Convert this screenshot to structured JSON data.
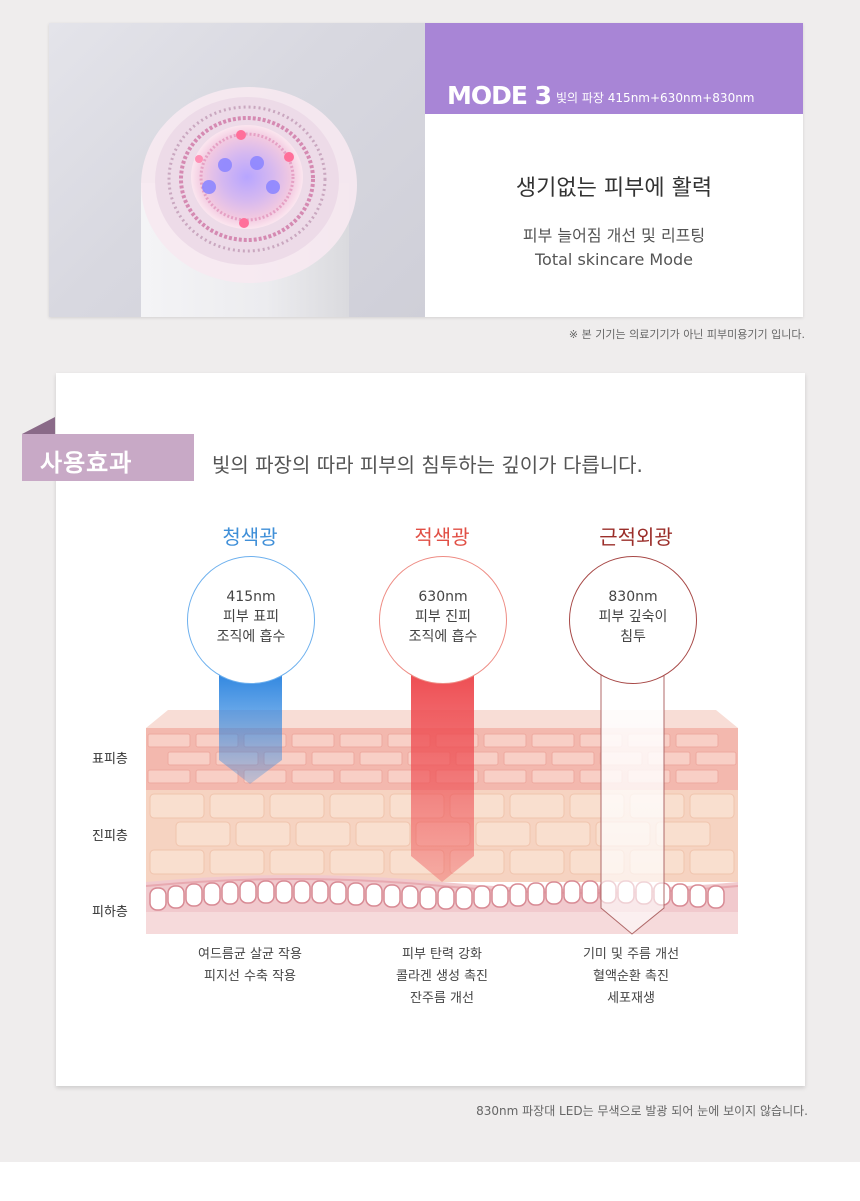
{
  "mode": {
    "title": "MODE 3",
    "subtitle": "빛의 파장 415nm+630nm+830nm",
    "headline": "생기없는 피부에 활력",
    "desc": "피부 늘어짐 개선 및 리프팅",
    "desc_en": "Total skincare Mode"
  },
  "note_top": "※ 본 기기는 의료기기가 아닌 피부미용기기 입니다.",
  "effects_section": {
    "ribbon_label": "사용효과",
    "description": "빛의 파장의 따라 피부의 침투하는 깊이가 다릅니다."
  },
  "lights": [
    {
      "title": "청색광",
      "line1": "415nm",
      "line2": "피부 표피",
      "line3": "조직에 흡수",
      "color": "#3f8fd8"
    },
    {
      "title": "적색광",
      "line1": "630nm",
      "line2": "피부 진피",
      "line3": "조직에 흡수",
      "color": "#e14f45"
    },
    {
      "title": "근적외광",
      "line1": "830nm",
      "line2": "피부 깊숙이",
      "line3": "침투",
      "color": "#9b2e2a"
    }
  ],
  "layers": {
    "epidermis": "표피층",
    "dermis": "진피층",
    "hypodermis": "피하층"
  },
  "effects": [
    {
      "l1": "여드름균 살균 작용",
      "l2": "피지선 수축 작용",
      "l3": ""
    },
    {
      "l1": "피부 탄력 강화",
      "l2": "콜라겐 생성 촉진",
      "l3": "잔주름 개선"
    },
    {
      "l1": "기미 및 주름 개선",
      "l2": "혈액순환 촉진",
      "l3": "세포재생"
    }
  ],
  "note_bottom": "830nm 파장대 LED는  무색으로 발광 되어 눈에 보이지 않습니다."
}
